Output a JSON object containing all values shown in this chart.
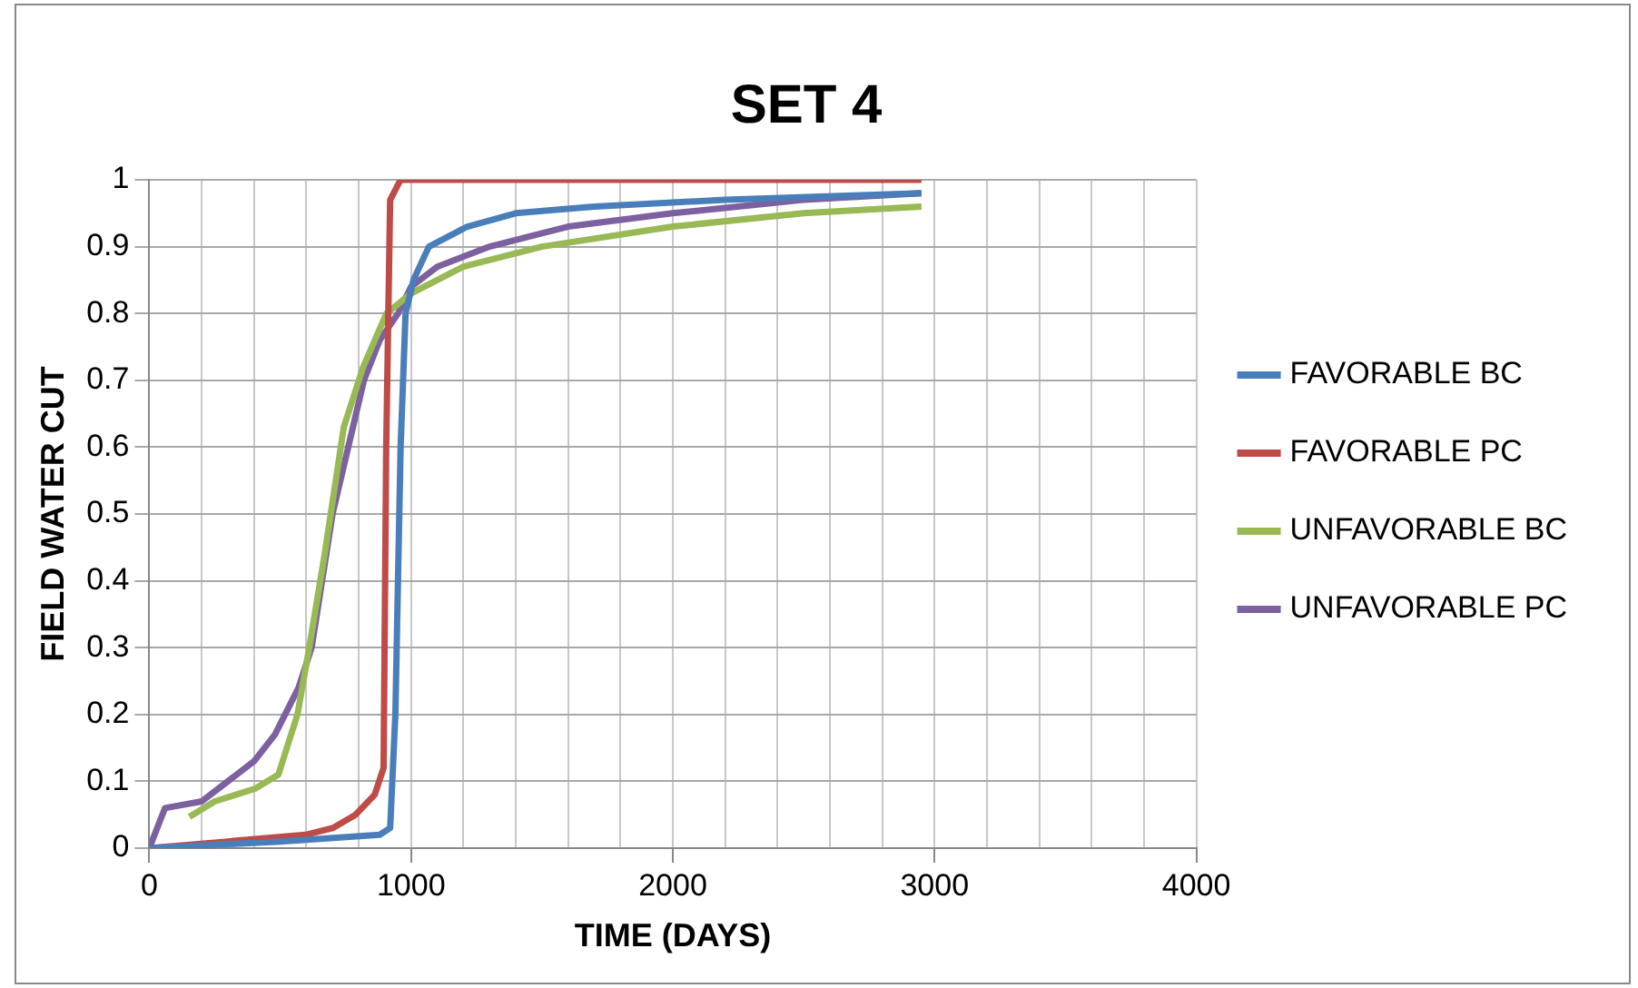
{
  "chart_data": {
    "type": "line",
    "title": "SET 4",
    "xlabel": "TIME (DAYS)",
    "ylabel": "FIELD WATER CUT",
    "xlim": [
      0,
      4000
    ],
    "ylim": [
      0,
      1
    ],
    "xticks": [
      0,
      {
        "value": 200,
        "label": null
      },
      {
        "value": 400,
        "label": null
      },
      {
        "value": 600,
        "label": null
      },
      {
        "value": 800,
        "label": null
      },
      1000,
      {
        "value": 1200,
        "label": null
      },
      {
        "value": 1400,
        "label": null
      },
      {
        "value": 1600,
        "label": null
      },
      {
        "value": 1800,
        "label": null
      },
      2000,
      {
        "value": 2200,
        "label": null
      },
      {
        "value": 2400,
        "label": null
      },
      {
        "value": 2600,
        "label": null
      },
      {
        "value": 2800,
        "label": null
      },
      3000,
      {
        "value": 3200,
        "label": null
      },
      {
        "value": 3400,
        "label": null
      },
      {
        "value": 3600,
        "label": null
      },
      {
        "value": 3800,
        "label": null
      },
      4000
    ],
    "yticks": [
      0,
      0.1,
      0.2,
      0.3,
      0.4,
      0.5,
      0.6,
      0.7,
      0.8,
      0.9,
      1
    ],
    "grid": true,
    "legend": "right",
    "marker": "none",
    "line_style": "solid",
    "series": [
      {
        "name": "FAVORABLE BC",
        "color": "#4a7ebb",
        "x": [
          0,
          500,
          880,
          920,
          940,
          960,
          979,
          1009,
          1068,
          1215,
          1400,
          1700,
          2200,
          2950
        ],
        "values": [
          0,
          0.01,
          0.02,
          0.03,
          0.2,
          0.6,
          0.8,
          0.85,
          0.9,
          0.93,
          0.95,
          0.96,
          0.97,
          0.98
        ]
      },
      {
        "name": "FAVORABLE PC",
        "color": "#be4b48",
        "x": [
          0,
          300,
          596,
          700,
          788,
          861,
          895,
          905,
          920,
          960,
          1500,
          2950
        ],
        "values": [
          0,
          0.01,
          0.02,
          0.03,
          0.05,
          0.08,
          0.12,
          0.6,
          0.97,
          1,
          1,
          1
        ]
      },
      {
        "name": "UNFAVORABLE BC",
        "color": "#98b954",
        "x": [
          153,
          250,
          404,
          493,
          566,
          611,
          670,
          743,
          817,
          906,
          1000,
          1200,
          1500,
          2000,
          2500,
          2950
        ],
        "values": [
          0.047,
          0.07,
          0.089,
          0.11,
          0.2,
          0.3,
          0.44,
          0.63,
          0.72,
          0.8,
          0.83,
          0.87,
          0.9,
          0.93,
          0.95,
          0.96
        ]
      },
      {
        "name": "UNFAVORABLE PC",
        "color": "#7d60a0",
        "x": [
          0,
          60,
          200,
          300,
          400,
          480,
          570,
          620,
          660,
          700,
          760,
          820,
          880,
          950,
          1000,
          1100,
          1300,
          1600,
          2000,
          2500,
          2950
        ],
        "values": [
          0,
          0.06,
          0.07,
          0.1,
          0.13,
          0.17,
          0.24,
          0.3,
          0.4,
          0.5,
          0.6,
          0.7,
          0.76,
          0.8,
          0.84,
          0.87,
          0.9,
          0.93,
          0.95,
          0.97,
          0.98
        ]
      }
    ]
  }
}
